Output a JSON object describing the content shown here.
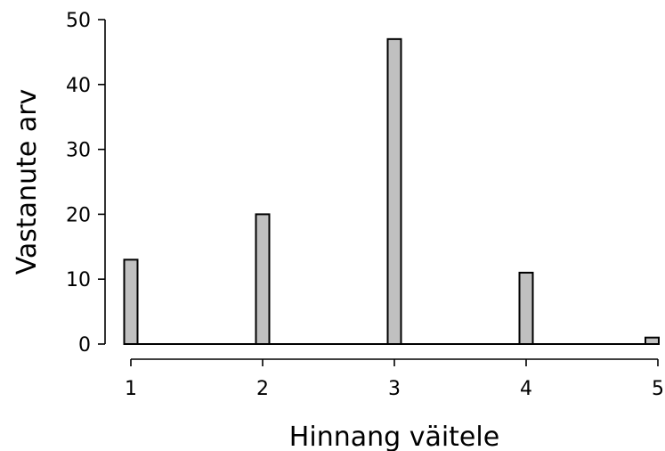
{
  "chart_data": {
    "type": "bar",
    "title": "",
    "xlabel": "Hinnang väitele",
    "ylabel": "Vastanute arv",
    "x": [
      1,
      2,
      3,
      4,
      5
    ],
    "values": [
      13,
      20,
      47,
      11,
      1
    ],
    "xlim": [
      1,
      5
    ],
    "ylim": [
      0,
      50
    ],
    "xticks": [
      1,
      2,
      3,
      4,
      5
    ],
    "yticks": [
      0,
      10,
      20,
      30,
      40,
      50
    ],
    "grid": false,
    "colors": {
      "bar_fill": "#c0c0c0",
      "bar_stroke": "#000000",
      "axis": "#000000"
    }
  }
}
